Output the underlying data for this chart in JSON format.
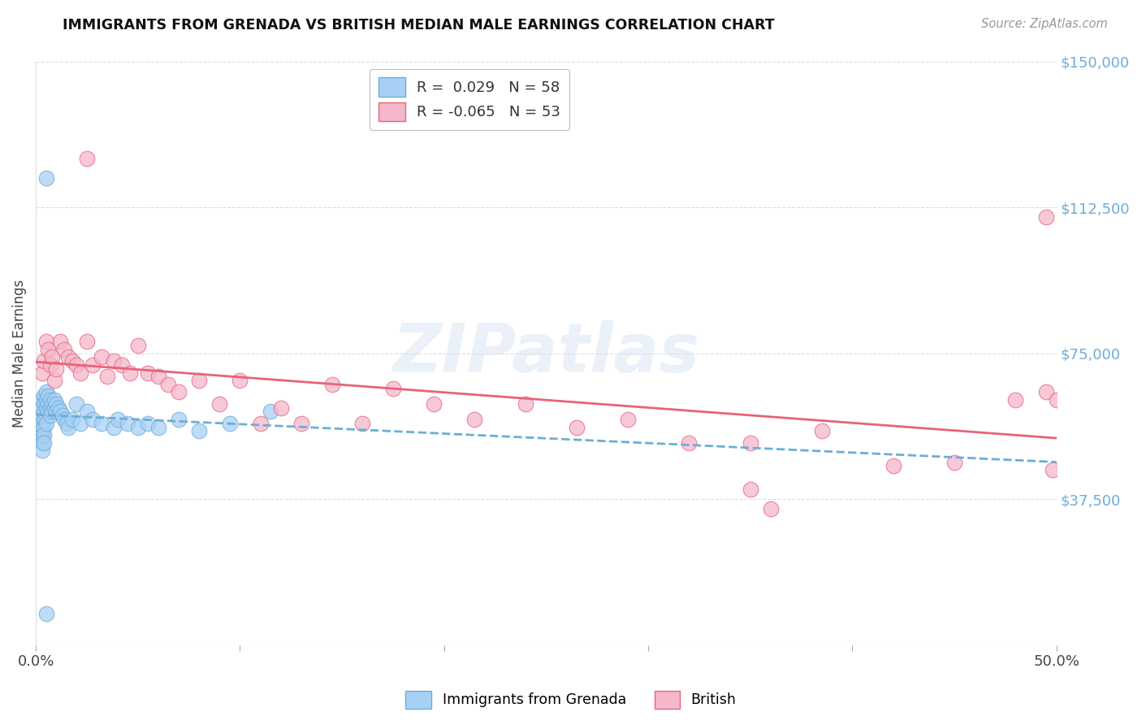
{
  "title": "IMMIGRANTS FROM GRENADA VS BRITISH MEDIAN MALE EARNINGS CORRELATION CHART",
  "source": "Source: ZipAtlas.com",
  "ylabel": "Median Male Earnings",
  "xlim": [
    0.0,
    0.5
  ],
  "ylim": [
    0,
    150000
  ],
  "ytick_values": [
    0,
    37500,
    75000,
    112500,
    150000
  ],
  "ytick_labels": [
    "",
    "$37,500",
    "$75,000",
    "$112,500",
    "$150,000"
  ],
  "xtick_values": [
    0.0,
    0.1,
    0.2,
    0.3,
    0.4,
    0.5
  ],
  "xtick_labels": [
    "0.0%",
    "",
    "",
    "",
    "",
    "50.0%"
  ],
  "legend_labels": [
    "Immigrants from Grenada",
    "British"
  ],
  "r_grenada": 0.029,
  "n_grenada": 58,
  "r_british": -0.065,
  "n_british": 53,
  "color_grenada": "#A8D0F5",
  "color_british": "#F5B8CB",
  "trendline_color_grenada": "#6BAED6",
  "trendline_color_british": "#E8637A",
  "background_color": "#FFFFFF",
  "watermark": "ZIPatlas",
  "grenada_x": [
    0.003,
    0.003,
    0.003,
    0.003,
    0.003,
    0.003,
    0.003,
    0.003,
    0.003,
    0.003,
    0.004,
    0.004,
    0.004,
    0.004,
    0.004,
    0.004,
    0.004,
    0.005,
    0.005,
    0.005,
    0.005,
    0.005,
    0.006,
    0.006,
    0.006,
    0.007,
    0.007,
    0.007,
    0.008,
    0.008,
    0.009,
    0.009,
    0.01,
    0.01,
    0.011,
    0.012,
    0.013,
    0.014,
    0.015,
    0.016,
    0.018,
    0.02,
    0.022,
    0.025,
    0.028,
    0.032,
    0.038,
    0.04,
    0.045,
    0.05,
    0.055,
    0.06,
    0.07,
    0.08,
    0.095,
    0.115,
    0.005,
    0.005
  ],
  "grenada_y": [
    63000,
    61000,
    59000,
    57000,
    56000,
    55000,
    54000,
    53000,
    52000,
    50000,
    64000,
    62000,
    60000,
    58000,
    56000,
    54000,
    52000,
    65000,
    63000,
    61000,
    59000,
    57000,
    64000,
    62000,
    60000,
    63000,
    61000,
    59000,
    62000,
    60000,
    63000,
    61000,
    62000,
    60000,
    61000,
    60000,
    59000,
    58000,
    57000,
    56000,
    58000,
    62000,
    57000,
    60000,
    58000,
    57000,
    56000,
    58000,
    57000,
    56000,
    57000,
    56000,
    58000,
    55000,
    57000,
    60000,
    120000,
    8000
  ],
  "british_x": [
    0.003,
    0.004,
    0.005,
    0.006,
    0.007,
    0.008,
    0.009,
    0.01,
    0.012,
    0.014,
    0.016,
    0.018,
    0.02,
    0.022,
    0.025,
    0.028,
    0.032,
    0.035,
    0.038,
    0.042,
    0.046,
    0.05,
    0.055,
    0.06,
    0.065,
    0.07,
    0.08,
    0.09,
    0.1,
    0.11,
    0.12,
    0.13,
    0.145,
    0.16,
    0.175,
    0.195,
    0.215,
    0.24,
    0.265,
    0.29,
    0.32,
    0.35,
    0.385,
    0.42,
    0.45,
    0.48,
    0.495,
    0.498,
    0.5,
    0.025,
    0.35,
    0.495,
    0.36
  ],
  "british_y": [
    70000,
    73000,
    78000,
    76000,
    72000,
    74000,
    68000,
    71000,
    78000,
    76000,
    74000,
    73000,
    72000,
    70000,
    78000,
    72000,
    74000,
    69000,
    73000,
    72000,
    70000,
    77000,
    70000,
    69000,
    67000,
    65000,
    68000,
    62000,
    68000,
    57000,
    61000,
    57000,
    67000,
    57000,
    66000,
    62000,
    58000,
    62000,
    56000,
    58000,
    52000,
    52000,
    55000,
    46000,
    47000,
    63000,
    65000,
    45000,
    63000,
    125000,
    40000,
    110000,
    35000
  ]
}
